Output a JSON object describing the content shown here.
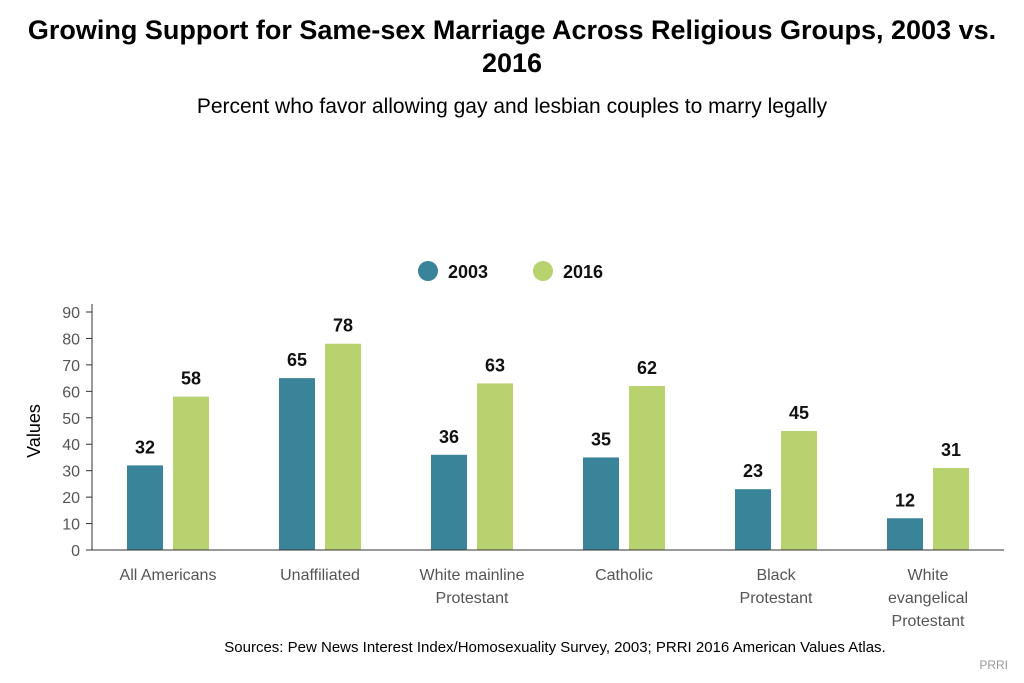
{
  "chart_data": {
    "type": "bar",
    "title": "Growing Support for Same-sex Marriage Across Religious Groups, 2003 vs. 2016",
    "subtitle": "Percent who favor allowing gay and lesbian couples to marry legally",
    "ylabel": "Values",
    "ylim": [
      0,
      90
    ],
    "yticks": [
      0,
      10,
      20,
      30,
      40,
      50,
      60,
      70,
      80,
      90
    ],
    "legend_position": "top-center",
    "categories": [
      [
        "All Americans"
      ],
      [
        "Unaffiliated"
      ],
      [
        "White mainline",
        "Protestant"
      ],
      [
        "Catholic"
      ],
      [
        "Black",
        "Protestant"
      ],
      [
        "White",
        "evangelical",
        "Protestant"
      ]
    ],
    "series": [
      {
        "name": "2003",
        "color": "#3a8499",
        "values": [
          32,
          65,
          36,
          35,
          23,
          12
        ]
      },
      {
        "name": "2016",
        "color": "#b8d26f",
        "values": [
          58,
          78,
          63,
          62,
          45,
          31
        ]
      }
    ]
  },
  "footer": {
    "source": "Sources: Pew News Interest Index/Homosexuality Survey, 2003; PRRI 2016 American Values Atlas.",
    "credit": "PRRI"
  }
}
